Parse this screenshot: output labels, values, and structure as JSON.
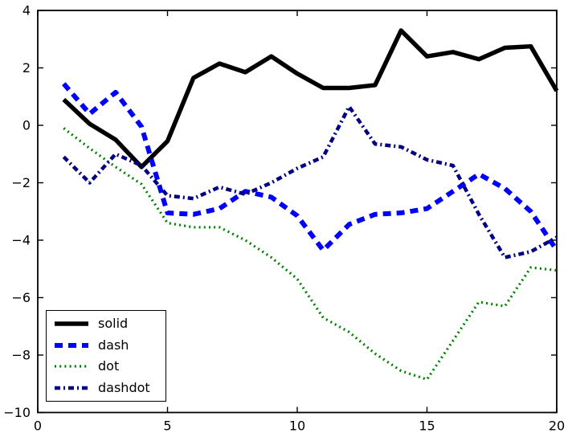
{
  "chart_data": {
    "type": "line",
    "title": "",
    "xlabel": "",
    "ylabel": "",
    "xlim": [
      0,
      20
    ],
    "ylim": [
      -10,
      4
    ],
    "xticks": [
      0,
      5,
      10,
      15,
      20
    ],
    "yticks": [
      -10,
      -8,
      -6,
      -4,
      -2,
      0,
      2,
      4
    ],
    "grid": false,
    "background": "#ffffff",
    "legend_position": "lower left",
    "x": [
      1,
      2,
      3,
      4,
      5,
      6,
      7,
      8,
      9,
      10,
      11,
      12,
      13,
      14,
      15,
      16,
      17,
      18,
      19,
      20
    ],
    "series": [
      {
        "name": "solid",
        "style": "solid",
        "color": "#000000",
        "linewidth": 5.5,
        "values": [
          0.9,
          0.05,
          -0.5,
          -1.45,
          -0.55,
          1.65,
          2.15,
          1.85,
          2.4,
          1.8,
          1.3,
          1.3,
          1.4,
          3.3,
          2.4,
          2.55,
          2.3,
          2.7,
          2.75,
          1.2
        ]
      },
      {
        "name": "dash",
        "style": "dash",
        "color": "#0000ff",
        "linewidth": 6,
        "values": [
          1.45,
          0.4,
          1.15,
          -0.05,
          -3.05,
          -3.1,
          -2.9,
          -2.3,
          -2.5,
          -3.15,
          -4.35,
          -3.45,
          -3.1,
          -3.05,
          -2.9,
          -2.3,
          -1.7,
          -2.2,
          -3.0,
          -4.35
        ]
      },
      {
        "name": "dot",
        "style": "dot",
        "color": "#008000",
        "linewidth": 3.2,
        "values": [
          -0.1,
          -0.8,
          -1.45,
          -2.05,
          -3.4,
          -3.55,
          -3.55,
          -4.0,
          -4.6,
          -5.35,
          -6.7,
          -7.2,
          -7.95,
          -8.55,
          -8.85,
          -7.5,
          -6.15,
          -6.3,
          -4.95,
          -5.05
        ]
      },
      {
        "name": "dashdot",
        "style": "dashdot",
        "color": "#000080",
        "linewidth": 4.5,
        "values": [
          -1.1,
          -2.0,
          -1.0,
          -1.4,
          -2.45,
          -2.55,
          -2.15,
          -2.4,
          -2.0,
          -1.5,
          -1.1,
          0.65,
          -0.65,
          -0.75,
          -1.2,
          -1.4,
          -3.1,
          -4.6,
          -4.4,
          -3.9
        ]
      }
    ]
  }
}
